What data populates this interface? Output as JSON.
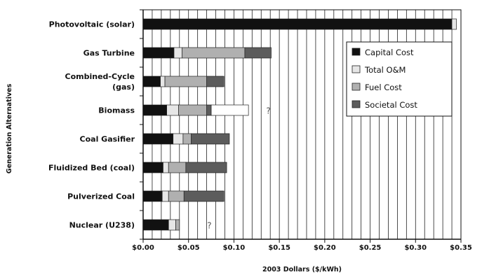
{
  "chart_data": {
    "type": "bar",
    "orientation": "horizontal",
    "stacked": true,
    "xlabel": "2003 Dollars ($/kWh)",
    "ylabel": "Generation Alternatives",
    "xlim": [
      0,
      0.35
    ],
    "xticks": [
      0.0,
      0.05,
      0.1,
      0.15,
      0.2,
      0.25,
      0.3,
      0.35
    ],
    "xtick_labels": [
      "$0.00",
      "$0.05",
      "$0.10",
      "$0.15",
      "$0.20",
      "$0.25",
      "$0.30",
      "$0.35"
    ],
    "grid": "vertical",
    "legend_position": "right",
    "categories": [
      "Photovoltaic (solar)",
      "Gas Turbine",
      "Combined-Cycle (gas)",
      "Biomass",
      "Coal Gasifier",
      "Fluidized Bed (coal)",
      "Pulverized Coal",
      "Nuclear (U238)"
    ],
    "category_lines": [
      [
        "Photovoltaic (solar)"
      ],
      [
        "Gas Turbine"
      ],
      [
        "Combined-Cycle",
        "(gas)"
      ],
      [
        "Biomass"
      ],
      [
        "Coal Gasifier"
      ],
      [
        "Fluidized Bed (coal)"
      ],
      [
        "Pulverized Coal"
      ],
      [
        "Nuclear (U238)"
      ]
    ],
    "series": [
      {
        "name": "Capital Cost",
        "color": "#111111",
        "values": [
          0.34,
          0.034,
          0.019,
          0.026,
          0.033,
          0.022,
          0.021,
          0.028
        ]
      },
      {
        "name": "Total O&M",
        "color": "#e6e6e6",
        "values": [
          0.005,
          0.009,
          0.005,
          0.013,
          0.011,
          0.006,
          0.007,
          0.008
        ]
      },
      {
        "name": "Fuel Cost",
        "color": "#b0b0b0",
        "values": [
          0.0,
          0.069,
          0.046,
          0.031,
          0.009,
          0.019,
          0.017,
          0.004
        ]
      },
      {
        "name": "Societal Cost",
        "color": "#5c5c5c",
        "values": [
          0.0,
          0.029,
          0.019,
          0.005,
          0.042,
          0.045,
          0.044,
          0.0
        ]
      }
    ],
    "extra_segments": [
      {
        "category": "Biomass",
        "color": "#ffffff",
        "start": 0.075,
        "value": 0.041
      }
    ],
    "annotations": [
      {
        "text": "?",
        "category": "Biomass",
        "x": 0.138
      },
      {
        "text": "?",
        "category": "Nuclear (U238)",
        "x": 0.073
      }
    ]
  }
}
